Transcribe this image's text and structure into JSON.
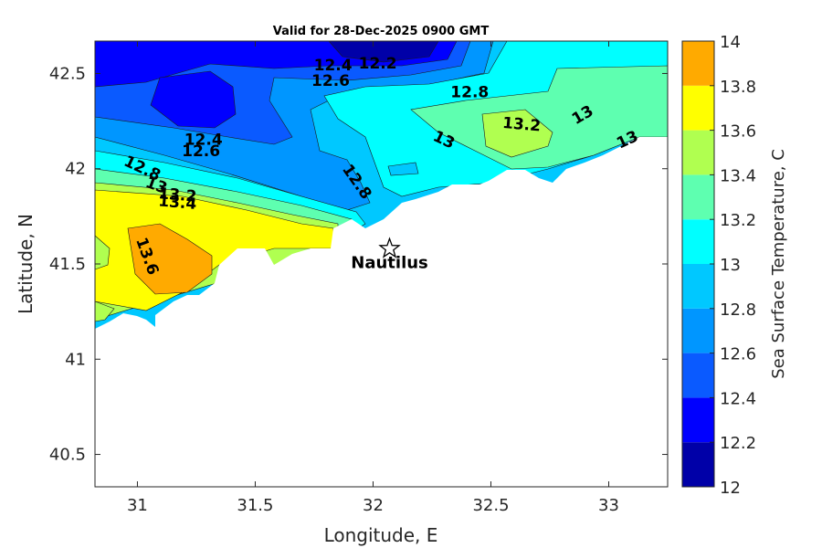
{
  "chart_data": {
    "type": "contour-map",
    "title": "Valid for 28-Dec-2025 0900 GMT",
    "xlabel": "Longitude, E",
    "ylabel": "Latitude, N",
    "xlim": [
      30.82,
      33.25
    ],
    "ylim": [
      40.33,
      42.67
    ],
    "x_ticks": [
      "31",
      "31.5",
      "32",
      "32.5",
      "33"
    ],
    "x_tick_values": [
      31,
      31.5,
      32,
      32.5,
      33
    ],
    "y_ticks": [
      "40.5",
      "41",
      "41.5",
      "42",
      "42.5"
    ],
    "y_tick_values": [
      40.5,
      41,
      41.5,
      42,
      42.5
    ],
    "colorbar": {
      "label": "Sea Surface Temperature, C",
      "levels": [
        12,
        12.2,
        12.4,
        12.6,
        12.8,
        13,
        13.2,
        13.4,
        13.6,
        13.8,
        14
      ],
      "tick_labels": [
        "12",
        "12.2",
        "12.4",
        "12.6",
        "12.8",
        "13",
        "13.2",
        "13.4",
        "13.6",
        "13.8",
        "14"
      ],
      "colors": [
        "#0000a8",
        "#0000ff",
        "#0a5aff",
        "#0096ff",
        "#00c8ff",
        "#00ffff",
        "#5effb0",
        "#b0ff50",
        "#ffff00",
        "#ffaa00",
        "#ff5500"
      ]
    },
    "contour_labels": [
      {
        "text": "12.4",
        "lon": 31.83,
        "lat": 42.54,
        "angle": 0
      },
      {
        "text": "12.2",
        "lon": 32.02,
        "lat": 42.55,
        "angle": 0
      },
      {
        "text": "12.6",
        "lon": 31.82,
        "lat": 42.46,
        "angle": 0
      },
      {
        "text": "12.8",
        "lon": 32.41,
        "lat": 42.4,
        "angle": 0
      },
      {
        "text": "13.2",
        "lon": 32.63,
        "lat": 42.23,
        "angle": 5
      },
      {
        "text": "13",
        "lon": 32.89,
        "lat": 42.28,
        "angle": -30
      },
      {
        "text": "13",
        "lon": 32.3,
        "lat": 42.15,
        "angle": 25
      },
      {
        "text": "13",
        "lon": 33.08,
        "lat": 42.15,
        "angle": -25
      },
      {
        "text": "12.4",
        "lon": 31.28,
        "lat": 42.15,
        "angle": 0
      },
      {
        "text": "12.6",
        "lon": 31.27,
        "lat": 42.09,
        "angle": 0
      },
      {
        "text": "12.8",
        "lon": 31.02,
        "lat": 42.0,
        "angle": 25
      },
      {
        "text": "12.8",
        "lon": 31.93,
        "lat": 41.93,
        "angle": 55
      },
      {
        "text": "13",
        "lon": 31.08,
        "lat": 41.91,
        "angle": 20
      },
      {
        "text": "13.2",
        "lon": 31.17,
        "lat": 41.86,
        "angle": 5
      },
      {
        "text": "13.4",
        "lon": 31.17,
        "lat": 41.82,
        "angle": 5
      },
      {
        "text": "13.6",
        "lon": 31.04,
        "lat": 41.54,
        "angle": 70
      }
    ],
    "markers": [
      {
        "name": "Nautilus",
        "lon": 32.07,
        "lat": 41.58,
        "symbol": "star"
      }
    ]
  }
}
